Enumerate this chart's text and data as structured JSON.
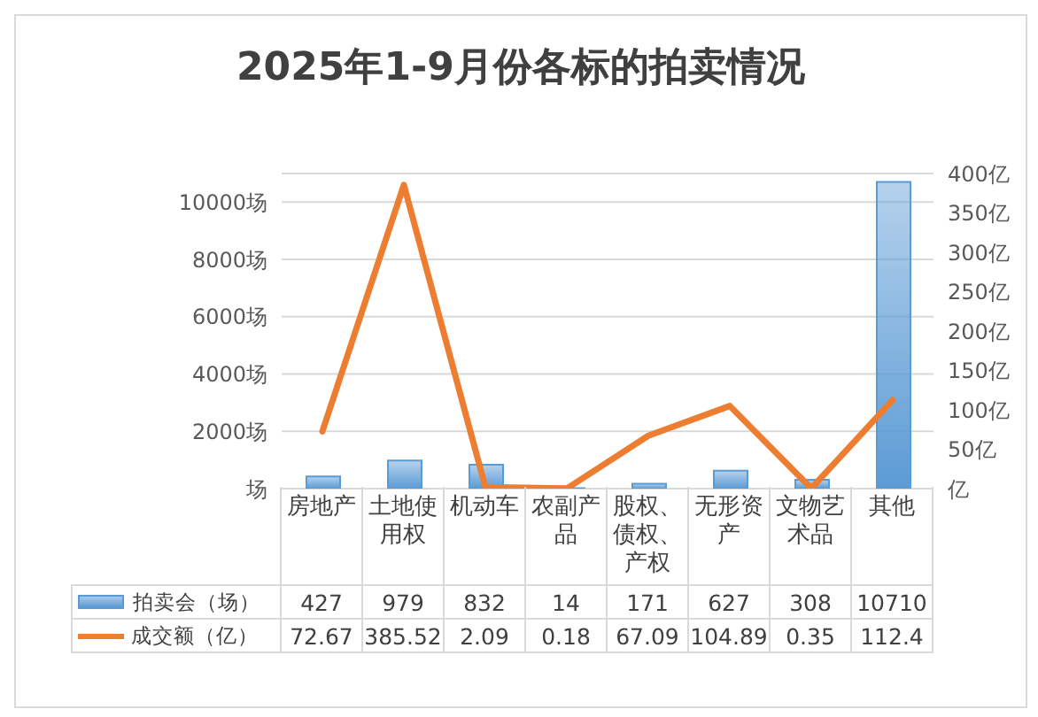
{
  "chart_data": {
    "type": "bar",
    "title": "2025年1-9月份各标的拍卖情况",
    "categories": [
      "房地产",
      "土地使用权",
      "机动车",
      "农副产品",
      "股权、债权、产权",
      "无形资产",
      "文物艺术品",
      "其他"
    ],
    "series": [
      {
        "name": "拍卖会（场）",
        "color": "#5b9bd5",
        "values": [
          427,
          979,
          832,
          14,
          171,
          627,
          308,
          10710
        ]
      },
      {
        "name": "成交额（亿）",
        "type": "line",
        "axis": "y2",
        "color": "#ed7d31",
        "values": [
          72.67,
          385.52,
          2.09,
          0.18,
          67.09,
          104.89,
          0.35,
          112.4
        ]
      }
    ],
    "ylim": [
      0,
      11000
    ],
    "yticks": [
      {
        "value": 0,
        "label": "场"
      },
      {
        "value": 2000,
        "label": "2000场"
      },
      {
        "value": 4000,
        "label": "4000场"
      },
      {
        "value": 6000,
        "label": "6000场"
      },
      {
        "value": 8000,
        "label": "8000场"
      },
      {
        "value": 10000,
        "label": "10000场"
      },
      {
        "value": 11000,
        "label": null
      }
    ],
    "y2lim": [
      0,
      400
    ],
    "y2ticks": [
      {
        "value": 0,
        "label": "亿"
      },
      {
        "value": 50,
        "label": "50亿"
      },
      {
        "value": 100,
        "label": "100亿"
      },
      {
        "value": 150,
        "label": "150亿"
      },
      {
        "value": 200,
        "label": "200亿"
      },
      {
        "value": 250,
        "label": "250亿"
      },
      {
        "value": 300,
        "label": "300亿"
      },
      {
        "value": 350,
        "label": "350亿"
      },
      {
        "value": 400,
        "label": "400亿"
      }
    ],
    "grid": "y",
    "data_labels": true,
    "legend": "bottom",
    "marker": "none",
    "line_style": "solid"
  }
}
